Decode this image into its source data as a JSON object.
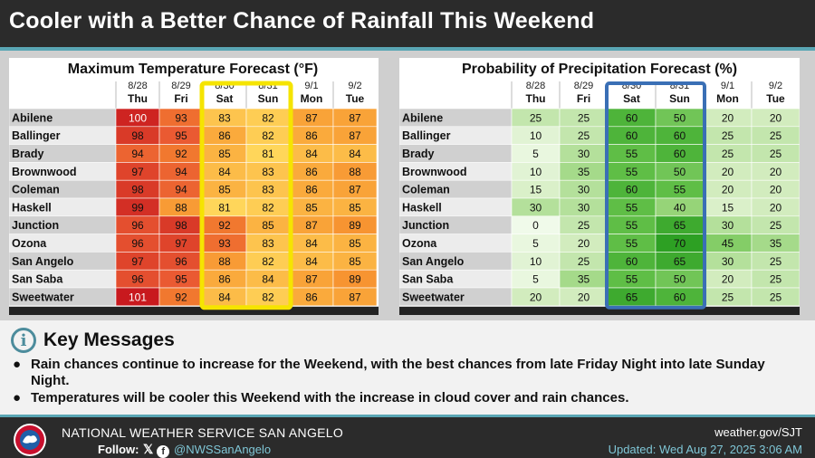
{
  "header": {
    "title": "Cooler with a Better Chance of Rainfall This Weekend"
  },
  "chart_data": [
    {
      "type": "table",
      "title": "Maximum Temperature Forecast (°F)",
      "columns": [
        {
          "date": "8/28",
          "day": "Thu"
        },
        {
          "date": "8/29",
          "day": "Fri"
        },
        {
          "date": "8/30",
          "day": "Sat"
        },
        {
          "date": "8/31",
          "day": "Sun"
        },
        {
          "date": "9/1",
          "day": "Mon"
        },
        {
          "date": "9/2",
          "day": "Tue"
        }
      ],
      "rows": [
        "Abilene",
        "Ballinger",
        "Brady",
        "Brownwood",
        "Coleman",
        "Haskell",
        "Junction",
        "Ozona",
        "San Angelo",
        "San Saba",
        "Sweetwater"
      ],
      "values": [
        [
          100,
          93,
          83,
          82,
          87,
          87
        ],
        [
          98,
          95,
          86,
          82,
          86,
          87
        ],
        [
          94,
          92,
          85,
          81,
          84,
          84
        ],
        [
          97,
          94,
          84,
          83,
          86,
          88
        ],
        [
          98,
          94,
          85,
          83,
          86,
          87
        ],
        [
          99,
          88,
          81,
          82,
          85,
          85
        ],
        [
          96,
          98,
          92,
          85,
          87,
          89
        ],
        [
          96,
          97,
          93,
          83,
          84,
          85
        ],
        [
          97,
          96,
          88,
          82,
          84,
          85
        ],
        [
          96,
          95,
          86,
          84,
          87,
          89
        ],
        [
          101,
          92,
          84,
          82,
          86,
          87
        ]
      ],
      "highlight_columns": [
        2,
        3
      ],
      "highlight_color": "#f5e400"
    },
    {
      "type": "table",
      "title": "Probability of Precipitation Forecast (%)",
      "columns": [
        {
          "date": "8/28",
          "day": "Thu"
        },
        {
          "date": "8/29",
          "day": "Fri"
        },
        {
          "date": "8/30",
          "day": "Sat"
        },
        {
          "date": "8/31",
          "day": "Sun"
        },
        {
          "date": "9/1",
          "day": "Mon"
        },
        {
          "date": "9/2",
          "day": "Tue"
        }
      ],
      "rows": [
        "Abilene",
        "Ballinger",
        "Brady",
        "Brownwood",
        "Coleman",
        "Haskell",
        "Junction",
        "Ozona",
        "San Angelo",
        "San Saba",
        "Sweetwater"
      ],
      "values": [
        [
          25,
          25,
          60,
          50,
          20,
          20
        ],
        [
          10,
          25,
          60,
          60,
          25,
          25
        ],
        [
          5,
          30,
          55,
          60,
          25,
          25
        ],
        [
          10,
          35,
          55,
          50,
          20,
          20
        ],
        [
          15,
          30,
          60,
          55,
          20,
          20
        ],
        [
          30,
          30,
          55,
          40,
          15,
          20
        ],
        [
          0,
          25,
          55,
          65,
          30,
          25
        ],
        [
          5,
          20,
          55,
          70,
          45,
          35
        ],
        [
          10,
          25,
          60,
          65,
          30,
          25
        ],
        [
          5,
          35,
          55,
          50,
          20,
          25
        ],
        [
          20,
          20,
          65,
          60,
          25,
          25
        ]
      ],
      "highlight_columns": [
        2,
        3
      ],
      "highlight_color": "#3a6fb5"
    }
  ],
  "key_messages": {
    "title": "Key Messages",
    "icon": "info-icon",
    "items": [
      "Rain chances continue to increase for the Weekend, with the best chances from late Friday Night into late Sunday Night.",
      "Temperatures will be cooler this Weekend with the increase in cloud cover and rain chances."
    ]
  },
  "footer": {
    "agency": "NATIONAL WEATHER SERVICE SAN ANGELO",
    "follow_label": "Follow:",
    "social_icons": [
      "x-icon",
      "facebook-icon"
    ],
    "handle": "@NWSSanAngelo",
    "website": "weather.gov/SJT",
    "updated": "Updated: Wed Aug 27, 2025 3:06 AM"
  },
  "colors": {
    "header_bg": "#2b2b2b",
    "accent": "#5aa6b4"
  }
}
